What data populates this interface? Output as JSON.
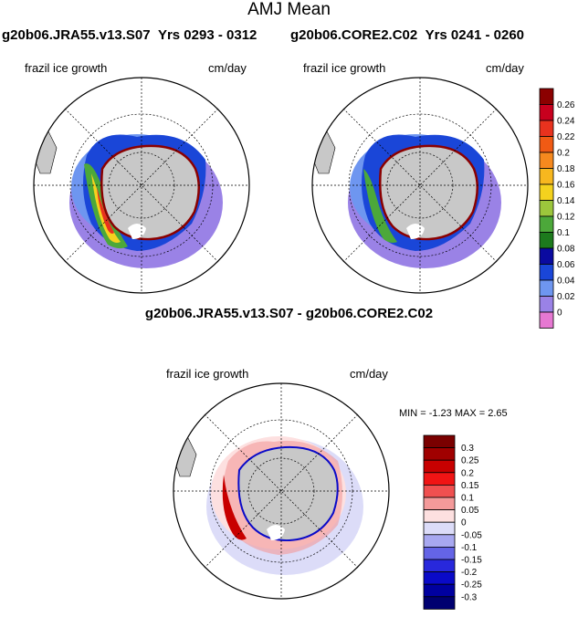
{
  "figure": {
    "title": "AMJ Mean"
  },
  "panels": {
    "left": {
      "run": "g20b06.JRA55.v13.S07",
      "years_label": "Yrs 0293 - 0312",
      "variable": "frazil ice growth",
      "units": "cm/day"
    },
    "right": {
      "run": "g20b06.CORE2.C02",
      "years_label": "Yrs 0241 - 0260",
      "variable": "frazil ice growth",
      "units": "cm/day"
    },
    "diff": {
      "title": "g20b06.JRA55.v13.S07 - g20b06.CORE2.C02",
      "variable": "frazil ice growth",
      "units": "cm/day",
      "minmax": "MIN =  -1.23 MAX =    2.65"
    }
  },
  "colorbars": {
    "top": {
      "labels": [
        "0.26",
        "0.24",
        "0.22",
        "0.2",
        "0.18",
        "0.16",
        "0.14",
        "0.12",
        "0.1",
        "0.08",
        "0.06",
        "0.04",
        "0.02",
        "0"
      ],
      "colors": [
        "#8b0000",
        "#c8001e",
        "#e8321e",
        "#f05a14",
        "#f6891e",
        "#f7b71f",
        "#f4d21e",
        "#9cc63c",
        "#4ca83a",
        "#1d7a1d",
        "#0a0aa0",
        "#1a46d8",
        "#6e96f0",
        "#9a82e6",
        "#e678d2"
      ]
    },
    "bottom": {
      "labels": [
        "0.3",
        "0.25",
        "0.2",
        "0.15",
        "0.1",
        "0.05",
        "0",
        "-0.05",
        "-0.1",
        "-0.15",
        "-0.2",
        "-0.25",
        "-0.3"
      ],
      "colors": [
        "#7a0000",
        "#a00000",
        "#c80000",
        "#f01414",
        "#f05050",
        "#f49a9a",
        "#fde0e0",
        "#dcdcf8",
        "#a8a8f0",
        "#6464e6",
        "#2828dc",
        "#0a0ac8",
        "#0000a0",
        "#000070"
      ]
    }
  }
}
